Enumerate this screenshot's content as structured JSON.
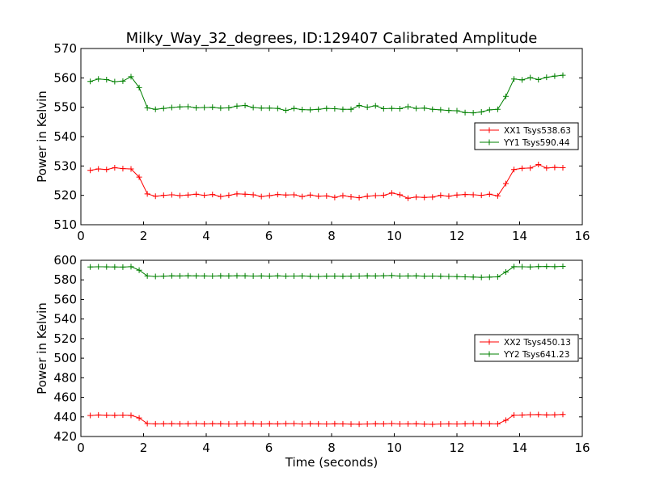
{
  "title": "Milky_Way_32_degrees, ID:129407 Calibrated Amplitude",
  "colors": {
    "red": "#ff0000",
    "green": "#008000",
    "axis": "#000000"
  },
  "chart_data": [
    {
      "type": "line",
      "title": "Milky_Way_32_degrees, ID:129407 Calibrated Amplitude",
      "xlabel": "",
      "ylabel": "Power in Kelvin",
      "xlim": [
        0,
        16
      ],
      "ylim": [
        510,
        570
      ],
      "xticks": [
        0,
        2,
        4,
        6,
        8,
        10,
        12,
        14,
        16
      ],
      "yticks": [
        510,
        520,
        530,
        540,
        550,
        560,
        570
      ],
      "grid": false,
      "legend_position": "center-right",
      "marker": "+",
      "x": [
        0.3,
        0.56,
        0.82,
        1.08,
        1.34,
        1.6,
        1.86,
        2.12,
        2.38,
        2.64,
        2.9,
        3.16,
        3.42,
        3.68,
        3.94,
        4.2,
        4.46,
        4.72,
        4.98,
        5.24,
        5.5,
        5.76,
        6.02,
        6.28,
        6.54,
        6.8,
        7.06,
        7.32,
        7.58,
        7.84,
        8.1,
        8.36,
        8.62,
        8.88,
        9.14,
        9.4,
        9.66,
        9.92,
        10.18,
        10.44,
        10.7,
        10.96,
        11.22,
        11.48,
        11.74,
        12.0,
        12.26,
        12.52,
        12.78,
        13.04,
        13.3,
        13.56,
        13.82,
        14.08,
        14.34,
        14.6,
        14.86,
        15.12,
        15.38
      ],
      "series": [
        {
          "name": "XX1 Tsys538.63",
          "color": "#ff0000",
          "values": [
            528.5,
            529.0,
            528.8,
            529.4,
            529.1,
            529.0,
            526.2,
            520.5,
            519.7,
            520.0,
            520.2,
            519.9,
            520.1,
            520.4,
            520.0,
            520.3,
            519.6,
            520.0,
            520.5,
            520.4,
            520.2,
            519.6,
            519.9,
            520.3,
            520.1,
            520.2,
            519.6,
            520.1,
            519.7,
            519.8,
            519.3,
            519.9,
            519.5,
            519.2,
            519.7,
            519.9,
            520.0,
            520.8,
            520.2,
            519.0,
            519.4,
            519.3,
            519.4,
            520.0,
            519.7,
            520.1,
            520.3,
            520.2,
            520.0,
            520.4,
            519.8,
            524.0,
            528.8,
            529.2,
            529.3,
            530.5,
            529.3,
            529.5,
            529.4
          ]
        },
        {
          "name": "YY1 Tsys590.44",
          "color": "#008000",
          "values": [
            558.8,
            559.6,
            559.4,
            558.7,
            558.9,
            560.4,
            556.7,
            549.8,
            549.3,
            549.6,
            549.9,
            550.1,
            550.2,
            549.8,
            549.9,
            550.0,
            549.7,
            549.8,
            550.4,
            550.6,
            549.9,
            549.7,
            549.7,
            549.6,
            548.9,
            549.6,
            549.2,
            549.1,
            549.3,
            549.6,
            549.5,
            549.3,
            549.3,
            550.6,
            550.0,
            550.5,
            549.5,
            549.6,
            549.5,
            550.2,
            549.6,
            549.7,
            549.3,
            549.1,
            548.9,
            548.8,
            548.2,
            548.1,
            548.4,
            549.1,
            549.3,
            553.7,
            559.6,
            559.3,
            560.1,
            559.4,
            560.2,
            560.6,
            560.9
          ]
        }
      ]
    },
    {
      "type": "line",
      "title": "",
      "xlabel": "Time (seconds)",
      "ylabel": "Power in Kelvin",
      "xlim": [
        0,
        16
      ],
      "ylim": [
        420,
        600
      ],
      "xticks": [
        0,
        2,
        4,
        6,
        8,
        10,
        12,
        14,
        16
      ],
      "yticks": [
        420,
        440,
        460,
        480,
        500,
        520,
        540,
        560,
        580,
        600
      ],
      "grid": false,
      "legend_position": "center-right",
      "marker": "+",
      "x": [
        0.3,
        0.56,
        0.82,
        1.08,
        1.34,
        1.6,
        1.86,
        2.12,
        2.38,
        2.64,
        2.9,
        3.16,
        3.42,
        3.68,
        3.94,
        4.2,
        4.46,
        4.72,
        4.98,
        5.24,
        5.5,
        5.76,
        6.02,
        6.28,
        6.54,
        6.8,
        7.06,
        7.32,
        7.58,
        7.84,
        8.1,
        8.36,
        8.62,
        8.88,
        9.14,
        9.4,
        9.66,
        9.92,
        10.18,
        10.44,
        10.7,
        10.96,
        11.22,
        11.48,
        11.74,
        12.0,
        12.26,
        12.52,
        12.78,
        13.04,
        13.3,
        13.56,
        13.82,
        14.08,
        14.34,
        14.6,
        14.86,
        15.12,
        15.38
      ],
      "series": [
        {
          "name": "XX2 Tsys450.13",
          "color": "#ff0000",
          "values": [
            441.5,
            442.0,
            441.8,
            441.7,
            441.9,
            441.6,
            438.9,
            433.2,
            432.9,
            433.0,
            433.1,
            432.9,
            433.0,
            433.2,
            432.9,
            433.1,
            433.0,
            432.8,
            432.9,
            433.2,
            433.0,
            432.8,
            433.0,
            432.9,
            433.1,
            433.2,
            432.8,
            433.0,
            432.9,
            432.8,
            433.0,
            432.9,
            432.7,
            432.6,
            432.8,
            433.0,
            432.9,
            433.2,
            432.8,
            432.9,
            433.0,
            432.7,
            432.5,
            432.8,
            432.9,
            432.8,
            433.0,
            433.2,
            433.1,
            433.0,
            432.9,
            436.6,
            441.9,
            442.0,
            442.3,
            442.4,
            442.1,
            442.2,
            442.5
          ]
        },
        {
          "name": "YY2 Tsys641.23",
          "color": "#008000",
          "values": [
            593.2,
            593.4,
            593.3,
            593.2,
            593.1,
            593.5,
            589.9,
            584.0,
            583.5,
            583.8,
            584.1,
            584.0,
            584.2,
            584.1,
            584.0,
            583.9,
            584.1,
            584.0,
            584.2,
            584.1,
            583.9,
            584.0,
            583.8,
            584.1,
            583.8,
            583.9,
            584.0,
            583.7,
            583.5,
            583.8,
            583.9,
            583.7,
            583.8,
            583.9,
            584.1,
            584.0,
            584.2,
            584.4,
            583.9,
            584.0,
            584.1,
            583.8,
            583.9,
            583.7,
            583.5,
            583.4,
            583.1,
            582.9,
            582.6,
            582.8,
            583.1,
            588.0,
            593.5,
            593.4,
            593.2,
            593.6,
            593.7,
            593.5,
            593.8
          ]
        }
      ]
    }
  ]
}
